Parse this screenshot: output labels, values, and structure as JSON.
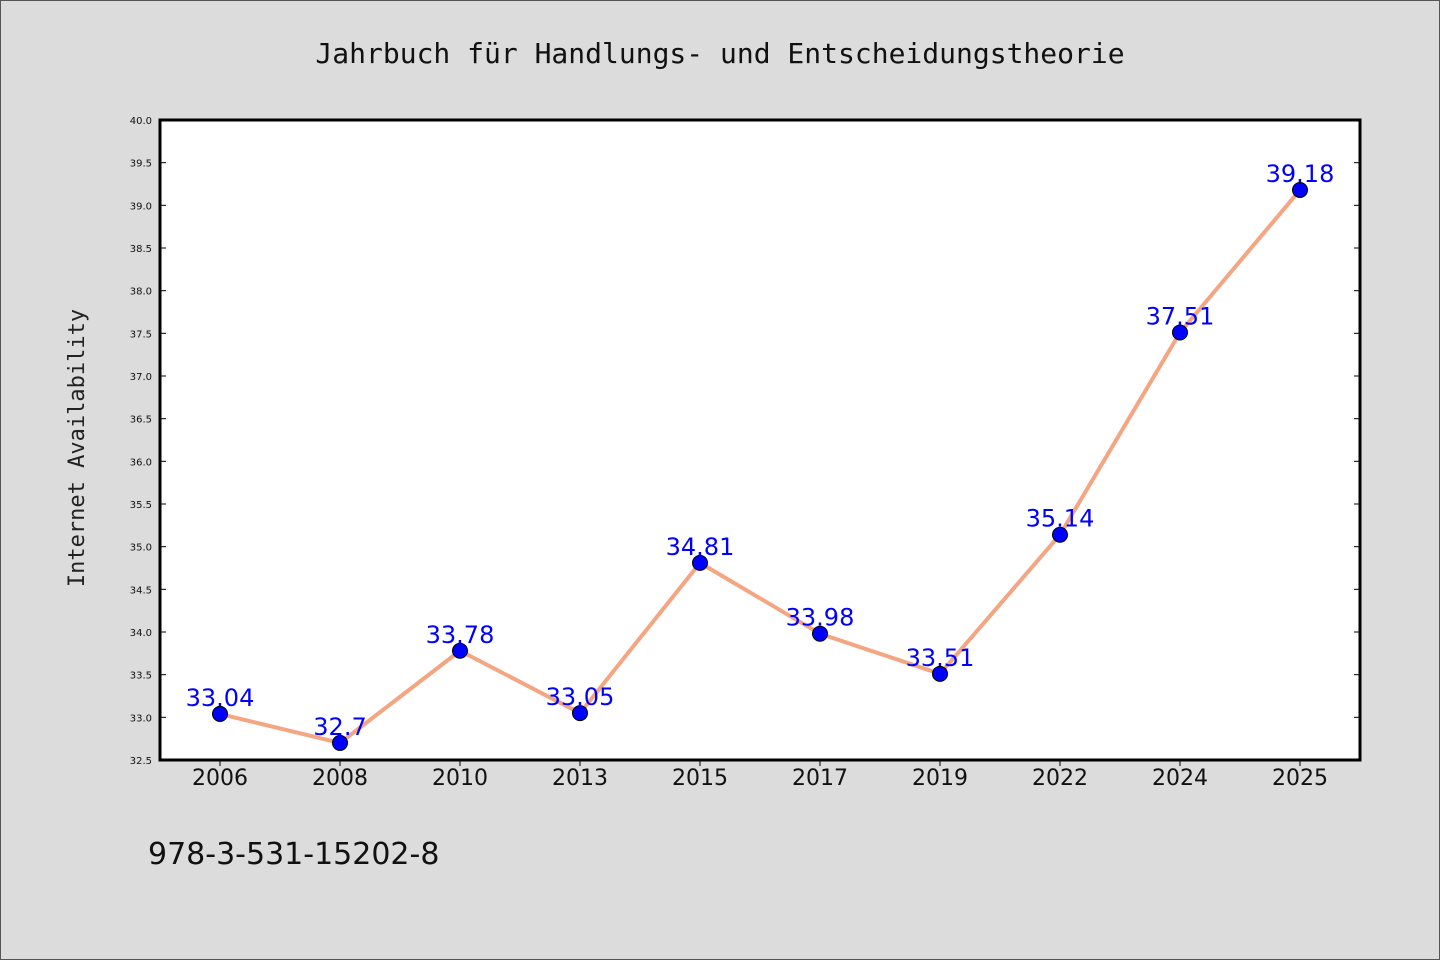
{
  "chart_data": {
    "type": "line",
    "title": "Jahrbuch für Handlungs- und Entscheidungstheorie",
    "xlabel": "",
    "ylabel": "Internet Availability",
    "categories": [
      "2006",
      "2008",
      "2010",
      "2013",
      "2015",
      "2017",
      "2019",
      "2022",
      "2024",
      "2025"
    ],
    "values": [
      33.04,
      32.7,
      33.78,
      33.05,
      34.81,
      33.98,
      33.51,
      35.14,
      37.51,
      39.18
    ],
    "data_labels": [
      "33.04",
      "32.7",
      "33.78",
      "33.05",
      "34.81",
      "33.98",
      "33.51",
      "35.14",
      "37.51",
      "39.18"
    ],
    "ylim": [
      32.5,
      40.0
    ],
    "yticks": [
      "32.5",
      "33.0",
      "33.5",
      "34.0",
      "34.5",
      "35.0",
      "35.5",
      "36.0",
      "36.5",
      "37.0",
      "37.5",
      "38.0",
      "38.5",
      "39.0",
      "39.5",
      "40.0"
    ],
    "grid": false,
    "line_color": "#f4a582",
    "marker_color": "#0000ff",
    "label_color": "#0000ff"
  },
  "footer": {
    "isbn": "978-3-531-15202-8"
  }
}
